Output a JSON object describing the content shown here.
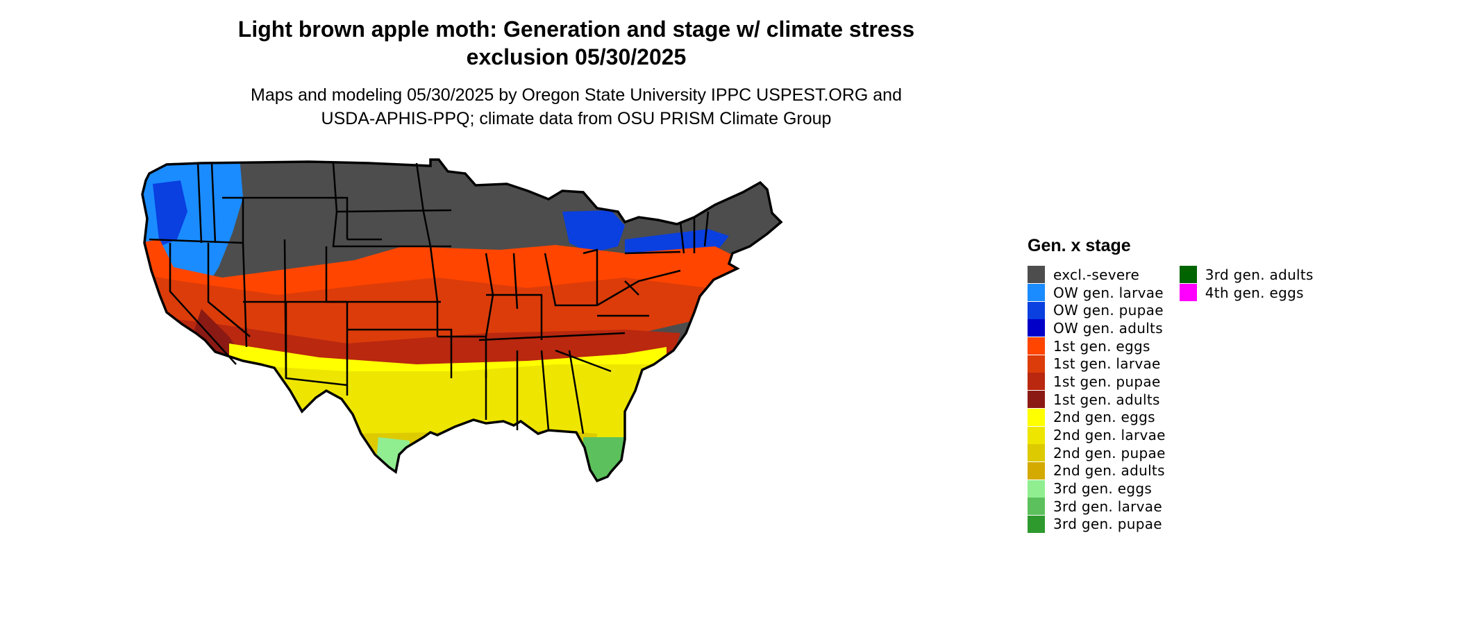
{
  "title": {
    "line1": "Light brown apple moth: Generation and stage w/ climate stress",
    "line2": "exclusion 05/30/2025"
  },
  "subtitle": {
    "line1": "Maps and modeling 05/30/2025 by Oregon State University IPPC USPEST.ORG and",
    "line2": "USDA-APHIS-PPQ; climate data from OSU PRISM Climate Group"
  },
  "legend": {
    "title": "Gen. x stage",
    "columns": [
      [
        {
          "label": "excl.-severe",
          "color": "#4d4d4d"
        },
        {
          "label": "OW gen. larvae",
          "color": "#1a8cff"
        },
        {
          "label": "OW gen. pupae",
          "color": "#0a3fe0"
        },
        {
          "label": "OW gen. adults",
          "color": "#0000c8"
        },
        {
          "label": "1st gen. eggs",
          "color": "#ff4500"
        },
        {
          "label": "1st gen. larvae",
          "color": "#dc3c0a"
        },
        {
          "label": "1st gen. pupae",
          "color": "#b9280f"
        },
        {
          "label": "1st gen. adults",
          "color": "#8b1a14"
        },
        {
          "label": "2nd gen. eggs",
          "color": "#ffff00"
        },
        {
          "label": "2nd gen. larvae",
          "color": "#eee600"
        },
        {
          "label": "2nd gen. pupae",
          "color": "#ddca00"
        },
        {
          "label": "2nd gen. adults",
          "color": "#d4aa00"
        },
        {
          "label": "3rd gen. eggs",
          "color": "#90ee90"
        },
        {
          "label": "3rd gen. larvae",
          "color": "#5cc15c"
        },
        {
          "label": "3rd gen. pupae",
          "color": "#2e9a2e"
        }
      ],
      [
        {
          "label": "3rd gen. adults",
          "color": "#006400"
        },
        {
          "label": "4th gen. eggs",
          "color": "#ff00ff"
        }
      ]
    ]
  }
}
